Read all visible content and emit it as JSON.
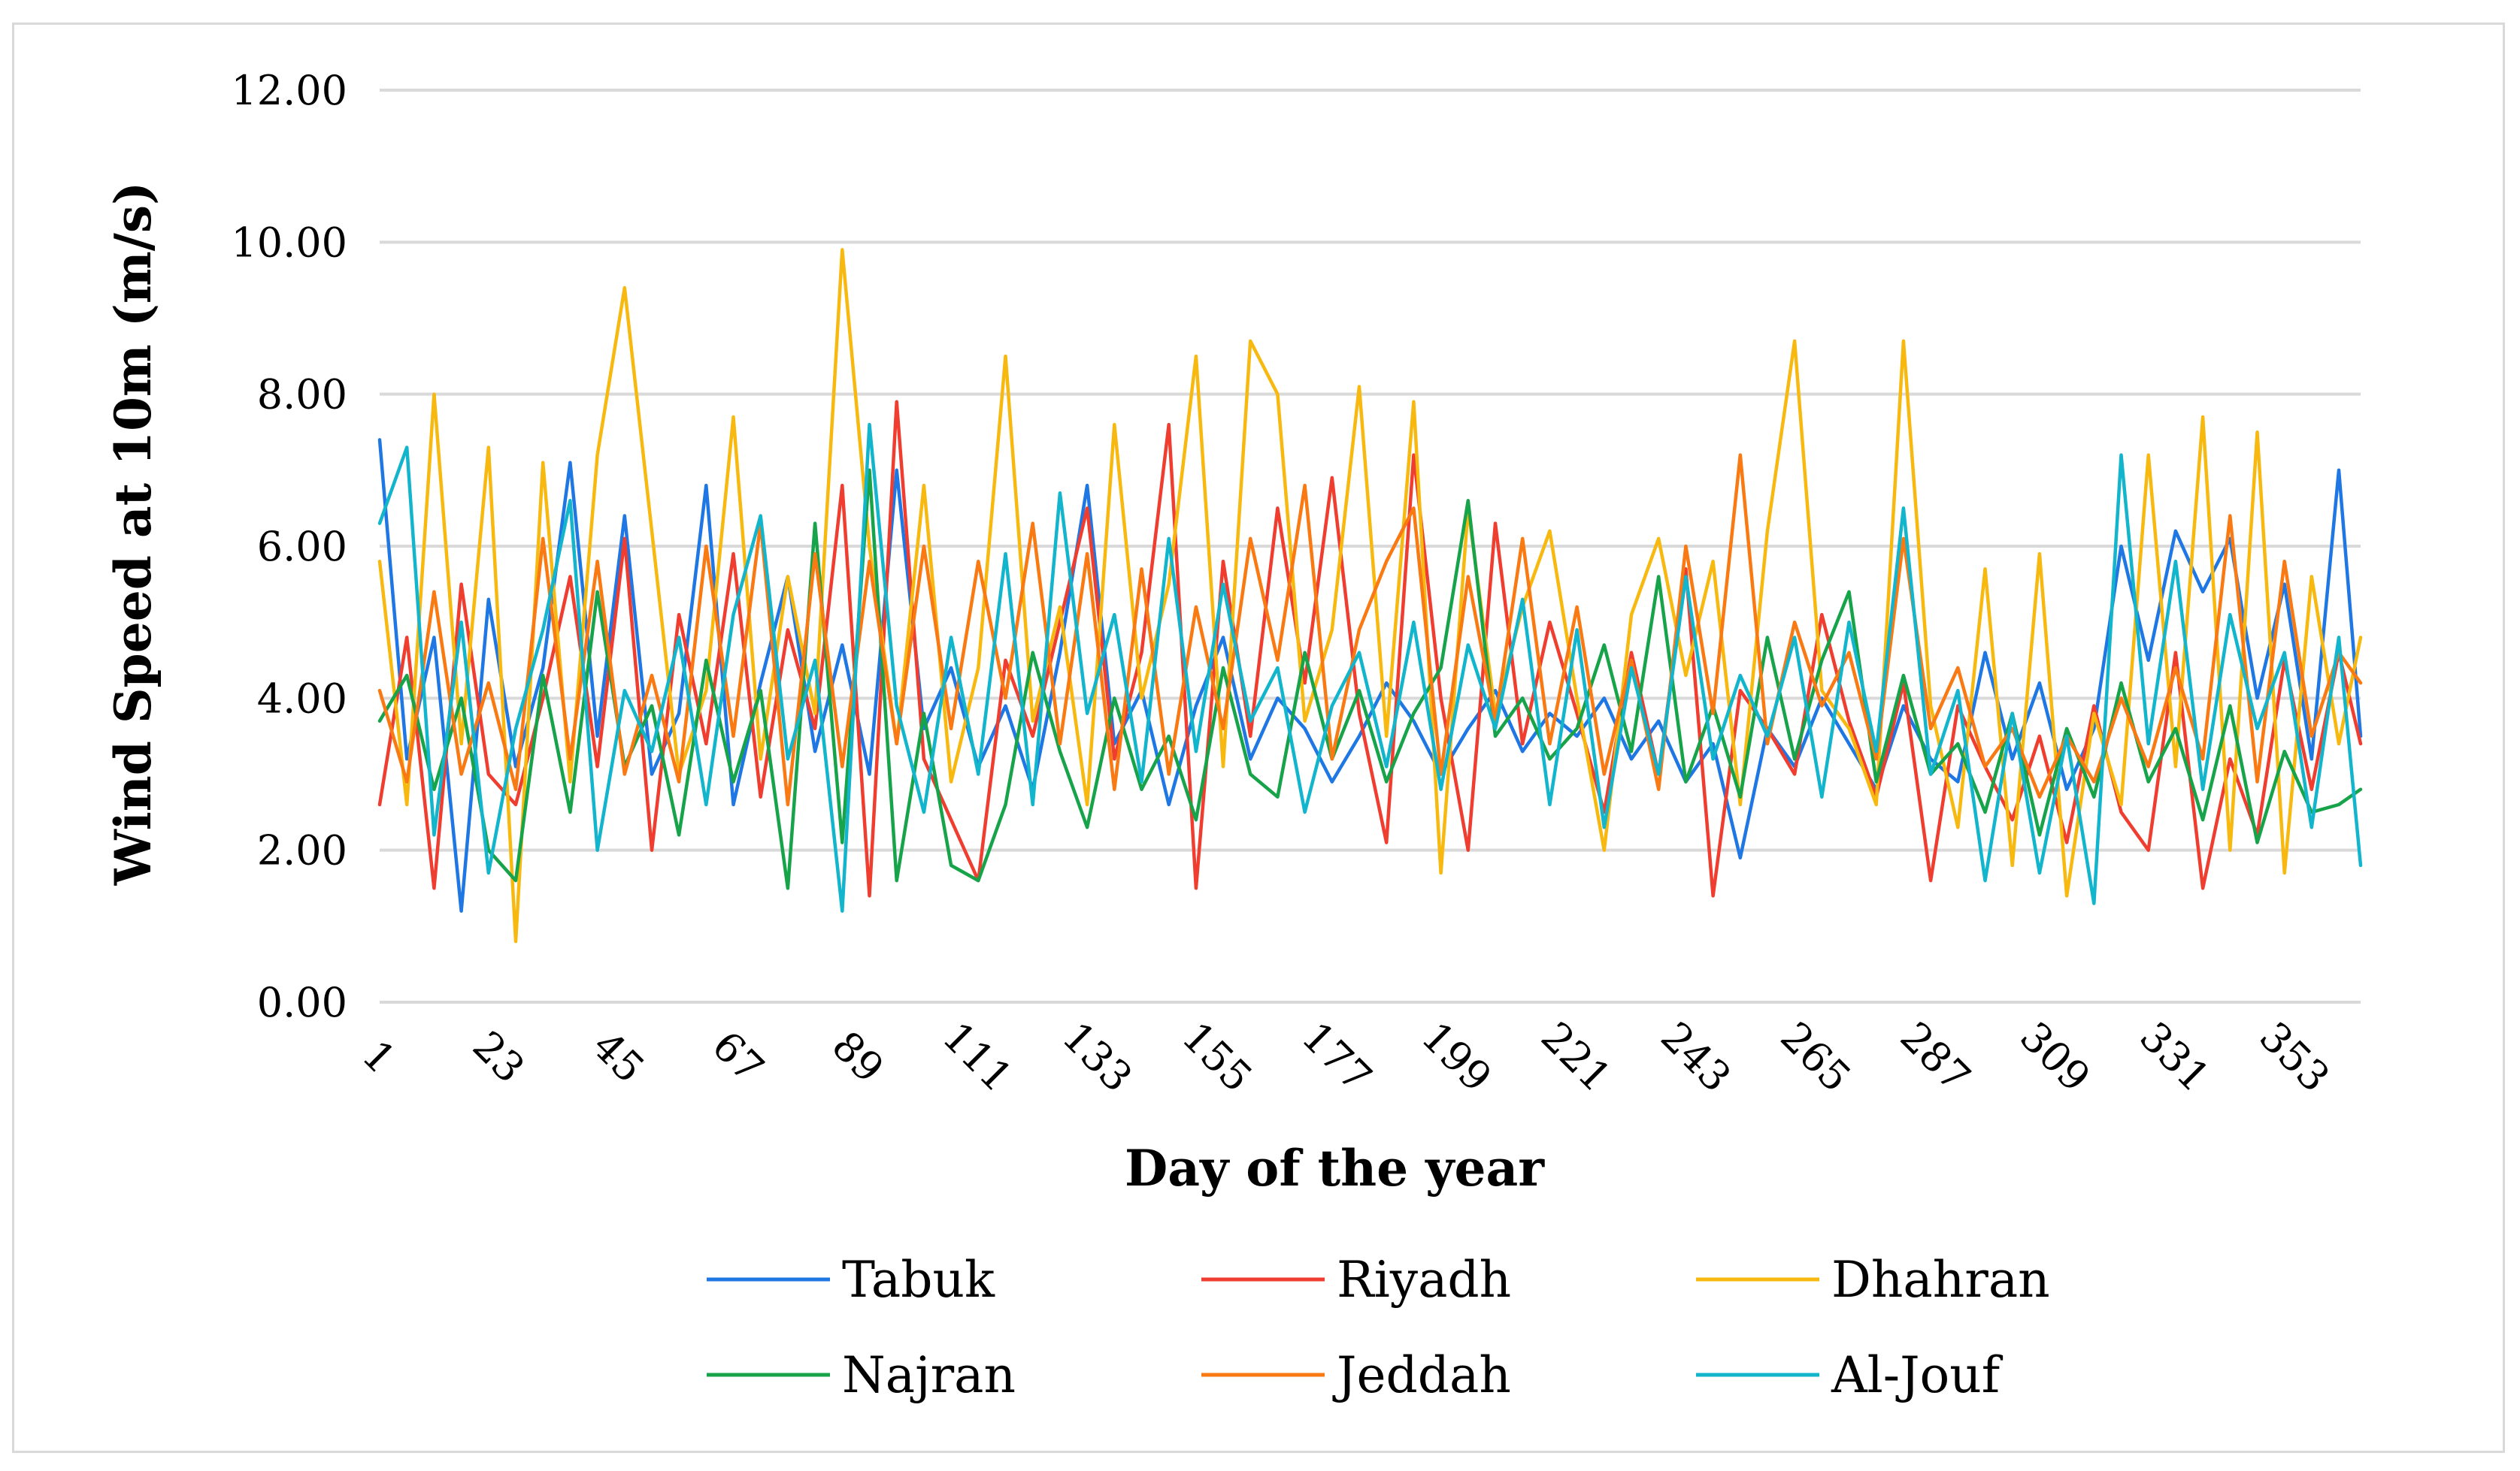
{
  "chart_data": {
    "type": "line",
    "title": "",
    "xlabel": "Day of the year",
    "ylabel": "Wind Speed at 10m (m/s)",
    "ylim": [
      0,
      12
    ],
    "xlim": [
      1,
      365
    ],
    "y_ticks": [
      "0.00",
      "2.00",
      "4.00",
      "6.00",
      "8.00",
      "10.00",
      "12.00"
    ],
    "x_ticks": [
      "1",
      "23",
      "45",
      "67",
      "89",
      "111",
      "133",
      "155",
      "177",
      "199",
      "221",
      "243",
      "265",
      "287",
      "309",
      "331",
      "353"
    ],
    "grid": true,
    "legend_position": "bottom",
    "series": [
      {
        "name": "Tabuk",
        "color": "#1f77e4",
        "x": [
          1,
          6,
          11,
          16,
          21,
          26,
          31,
          36,
          41,
          46,
          51,
          56,
          61,
          66,
          71,
          76,
          81,
          86,
          91,
          96,
          101,
          106,
          111,
          116,
          121,
          126,
          131,
          136,
          141,
          146,
          151,
          156,
          161,
          166,
          171,
          176,
          181,
          186,
          191,
          196,
          201,
          206,
          211,
          216,
          221,
          226,
          231,
          236,
          241,
          246,
          251,
          256,
          261,
          266,
          271,
          276,
          281,
          286,
          291,
          296,
          301,
          306,
          311,
          316,
          321,
          326,
          331,
          336,
          341,
          346,
          351,
          356,
          361,
          365
        ],
        "values": [
          7.4,
          3.2,
          4.8,
          1.2,
          5.3,
          3.1,
          4.4,
          7.1,
          3.5,
          6.4,
          3.0,
          3.8,
          6.8,
          2.6,
          4.2,
          5.6,
          3.3,
          4.7,
          3.0,
          7.0,
          3.6,
          4.4,
          3.1,
          3.9,
          2.8,
          4.6,
          6.8,
          3.4,
          4.1,
          2.6,
          3.9,
          4.8,
          3.2,
          4.0,
          3.6,
          2.9,
          3.5,
          4.2,
          3.7,
          3.0,
          3.6,
          4.1,
          3.3,
          3.8,
          3.5,
          4.0,
          3.2,
          3.7,
          2.9,
          3.4,
          1.9,
          3.6,
          3.1,
          4.0,
          3.4,
          2.8,
          3.9,
          3.2,
          2.9,
          4.6,
          3.2,
          4.2,
          2.8,
          3.6,
          6.0,
          4.5,
          6.2,
          5.4,
          6.1,
          4.0,
          5.5,
          3.2,
          7.0,
          3.5
        ]
      },
      {
        "name": "Riyadh",
        "color": "#ef3d2f",
        "x": [
          1,
          6,
          11,
          16,
          21,
          26,
          31,
          36,
          41,
          46,
          51,
          56,
          61,
          66,
          71,
          76,
          81,
          86,
          91,
          96,
          101,
          106,
          111,
          116,
          121,
          126,
          131,
          136,
          141,
          146,
          151,
          156,
          161,
          166,
          171,
          176,
          181,
          186,
          191,
          196,
          201,
          206,
          211,
          216,
          221,
          226,
          231,
          236,
          241,
          246,
          251,
          256,
          261,
          266,
          271,
          276,
          281,
          286,
          291,
          296,
          301,
          306,
          311,
          316,
          321,
          326,
          331,
          336,
          341,
          346,
          351,
          356,
          361,
          365
        ],
        "values": [
          2.6,
          4.8,
          1.5,
          5.5,
          3.0,
          2.6,
          4.0,
          5.6,
          3.1,
          6.1,
          2.0,
          5.1,
          3.4,
          5.9,
          2.7,
          4.9,
          3.6,
          6.8,
          1.4,
          7.9,
          3.2,
          2.4,
          1.6,
          4.5,
          3.5,
          5.0,
          6.5,
          3.2,
          4.6,
          7.6,
          1.5,
          5.8,
          3.5,
          6.5,
          4.2,
          6.9,
          3.8,
          2.1,
          7.2,
          4.0,
          2.0,
          6.3,
          3.4,
          5.0,
          3.8,
          2.5,
          4.6,
          3.0,
          5.7,
          1.4,
          4.1,
          3.6,
          3.0,
          5.1,
          3.7,
          2.7,
          4.2,
          1.6,
          3.9,
          3.1,
          2.4,
          3.5,
          2.1,
          3.9,
          2.5,
          2.0,
          4.6,
          1.5,
          3.2,
          2.2,
          4.5,
          2.8,
          4.6,
          3.4
        ]
      },
      {
        "name": "Dhahran",
        "color": "#f7b80f",
        "x": [
          1,
          6,
          11,
          16,
          21,
          26,
          31,
          36,
          41,
          46,
          51,
          56,
          61,
          66,
          71,
          76,
          81,
          86,
          91,
          96,
          101,
          106,
          111,
          116,
          121,
          126,
          131,
          136,
          141,
          146,
          151,
          156,
          161,
          166,
          171,
          176,
          181,
          186,
          191,
          196,
          201,
          206,
          211,
          216,
          221,
          226,
          231,
          236,
          241,
          246,
          251,
          256,
          261,
          266,
          271,
          276,
          281,
          286,
          291,
          296,
          301,
          306,
          311,
          316,
          321,
          326,
          331,
          336,
          341,
          346,
          351,
          356,
          361,
          365
        ],
        "values": [
          5.8,
          2.6,
          8.0,
          3.4,
          7.3,
          0.8,
          7.1,
          2.9,
          7.2,
          9.4,
          6.2,
          3.0,
          4.1,
          7.7,
          3.2,
          5.6,
          3.8,
          9.9,
          6.0,
          3.4,
          6.8,
          2.9,
          4.4,
          8.5,
          3.7,
          5.2,
          2.6,
          7.6,
          4.0,
          5.5,
          8.5,
          3.1,
          8.7,
          8.0,
          3.7,
          4.9,
          8.1,
          3.5,
          7.9,
          1.7,
          6.5,
          3.8,
          5.2,
          6.2,
          4.0,
          2.0,
          5.1,
          6.1,
          4.3,
          5.8,
          2.6,
          6.2,
          8.7,
          4.1,
          3.6,
          2.6,
          8.7,
          3.9,
          2.3,
          5.7,
          1.8,
          5.9,
          1.4,
          3.8,
          2.6,
          7.2,
          3.1,
          7.7,
          2.0,
          7.5,
          1.7,
          5.6,
          3.4,
          4.8
        ]
      },
      {
        "name": "Najran",
        "color": "#17a34a",
        "x": [
          1,
          6,
          11,
          16,
          21,
          26,
          31,
          36,
          41,
          46,
          51,
          56,
          61,
          66,
          71,
          76,
          81,
          86,
          91,
          96,
          101,
          106,
          111,
          116,
          121,
          126,
          131,
          136,
          141,
          146,
          151,
          156,
          161,
          166,
          171,
          176,
          181,
          186,
          191,
          196,
          201,
          206,
          211,
          216,
          221,
          226,
          231,
          236,
          241,
          246,
          251,
          256,
          261,
          266,
          271,
          276,
          281,
          286,
          291,
          296,
          301,
          306,
          311,
          316,
          321,
          326,
          331,
          336,
          341,
          346,
          351,
          356,
          361,
          365
        ],
        "values": [
          3.7,
          4.3,
          2.8,
          4.0,
          2.0,
          1.6,
          4.3,
          2.5,
          5.4,
          3.1,
          3.9,
          2.2,
          4.5,
          2.9,
          4.1,
          1.5,
          6.3,
          2.1,
          7.0,
          1.6,
          3.8,
          1.8,
          1.6,
          2.6,
          4.6,
          3.3,
          2.3,
          4.0,
          2.8,
          3.5,
          2.4,
          4.4,
          3.0,
          2.7,
          4.6,
          3.2,
          4.1,
          2.9,
          3.8,
          4.4,
          6.6,
          3.5,
          4.0,
          3.2,
          3.6,
          4.7,
          3.3,
          5.6,
          2.9,
          3.9,
          2.7,
          4.8,
          3.2,
          4.5,
          5.4,
          2.9,
          4.3,
          3.0,
          3.4,
          2.5,
          3.8,
          2.2,
          3.6,
          2.7,
          4.2,
          2.9,
          3.6,
          2.4,
          3.9,
          2.1,
          3.3,
          2.5,
          2.6,
          2.8
        ]
      },
      {
        "name": "Jeddah",
        "color": "#f97912",
        "x": [
          1,
          6,
          11,
          16,
          21,
          26,
          31,
          36,
          41,
          46,
          51,
          56,
          61,
          66,
          71,
          76,
          81,
          86,
          91,
          96,
          101,
          106,
          111,
          116,
          121,
          126,
          131,
          136,
          141,
          146,
          151,
          156,
          161,
          166,
          171,
          176,
          181,
          186,
          191,
          196,
          201,
          206,
          211,
          216,
          221,
          226,
          231,
          236,
          241,
          246,
          251,
          256,
          261,
          266,
          271,
          276,
          281,
          286,
          291,
          296,
          301,
          306,
          311,
          316,
          321,
          326,
          331,
          336,
          341,
          346,
          351,
          356,
          361,
          365
        ],
        "values": [
          4.1,
          2.9,
          5.4,
          3.0,
          4.2,
          2.8,
          6.1,
          3.2,
          5.8,
          3.0,
          4.3,
          2.9,
          6.0,
          3.5,
          6.3,
          2.6,
          5.9,
          3.1,
          5.8,
          3.4,
          6.0,
          3.6,
          5.8,
          4.0,
          6.3,
          3.4,
          5.9,
          2.8,
          5.7,
          3.0,
          5.2,
          3.6,
          6.1,
          4.5,
          6.8,
          3.2,
          4.9,
          5.8,
          6.5,
          3.0,
          5.6,
          3.7,
          6.1,
          3.4,
          5.2,
          3.0,
          4.5,
          2.8,
          6.0,
          3.8,
          7.2,
          3.4,
          5.0,
          3.9,
          4.6,
          3.2,
          6.1,
          3.6,
          4.4,
          3.1,
          3.6,
          2.7,
          3.5,
          2.9,
          4.0,
          3.1,
          4.4,
          3.2,
          6.4,
          2.9,
          5.8,
          3.5,
          4.6,
          4.2
        ]
      },
      {
        "name": "Al-Jouf",
        "color": "#12b5cb",
        "x": [
          1,
          6,
          11,
          16,
          21,
          26,
          31,
          36,
          41,
          46,
          51,
          56,
          61,
          66,
          71,
          76,
          81,
          86,
          91,
          96,
          101,
          106,
          111,
          116,
          121,
          126,
          131,
          136,
          141,
          146,
          151,
          156,
          161,
          166,
          171,
          176,
          181,
          186,
          191,
          196,
          201,
          206,
          211,
          216,
          221,
          226,
          231,
          236,
          241,
          246,
          251,
          256,
          261,
          266,
          271,
          276,
          281,
          286,
          291,
          296,
          301,
          306,
          311,
          316,
          321,
          326,
          331,
          336,
          341,
          346,
          351,
          356,
          361,
          365
        ],
        "values": [
          6.3,
          7.3,
          2.2,
          5.0,
          1.7,
          3.6,
          4.9,
          6.6,
          2.0,
          4.1,
          3.3,
          4.8,
          2.6,
          5.1,
          6.4,
          3.2,
          4.5,
          1.2,
          7.6,
          3.9,
          2.5,
          4.8,
          3.0,
          5.9,
          2.6,
          6.7,
          3.8,
          5.1,
          2.9,
          6.1,
          3.3,
          5.5,
          3.7,
          4.4,
          2.5,
          3.9,
          4.6,
          3.1,
          5.0,
          2.8,
          4.7,
          3.6,
          5.3,
          2.6,
          4.9,
          2.3,
          4.4,
          3.0,
          5.6,
          3.2,
          4.3,
          3.5,
          4.8,
          2.7,
          5.0,
          3.3,
          6.5,
          3.0,
          4.1,
          1.6,
          3.8,
          1.7,
          3.5,
          1.3,
          7.2,
          3.4,
          5.8,
          2.8,
          5.1,
          3.6,
          4.6,
          2.3,
          4.8,
          1.8
        ]
      }
    ]
  }
}
